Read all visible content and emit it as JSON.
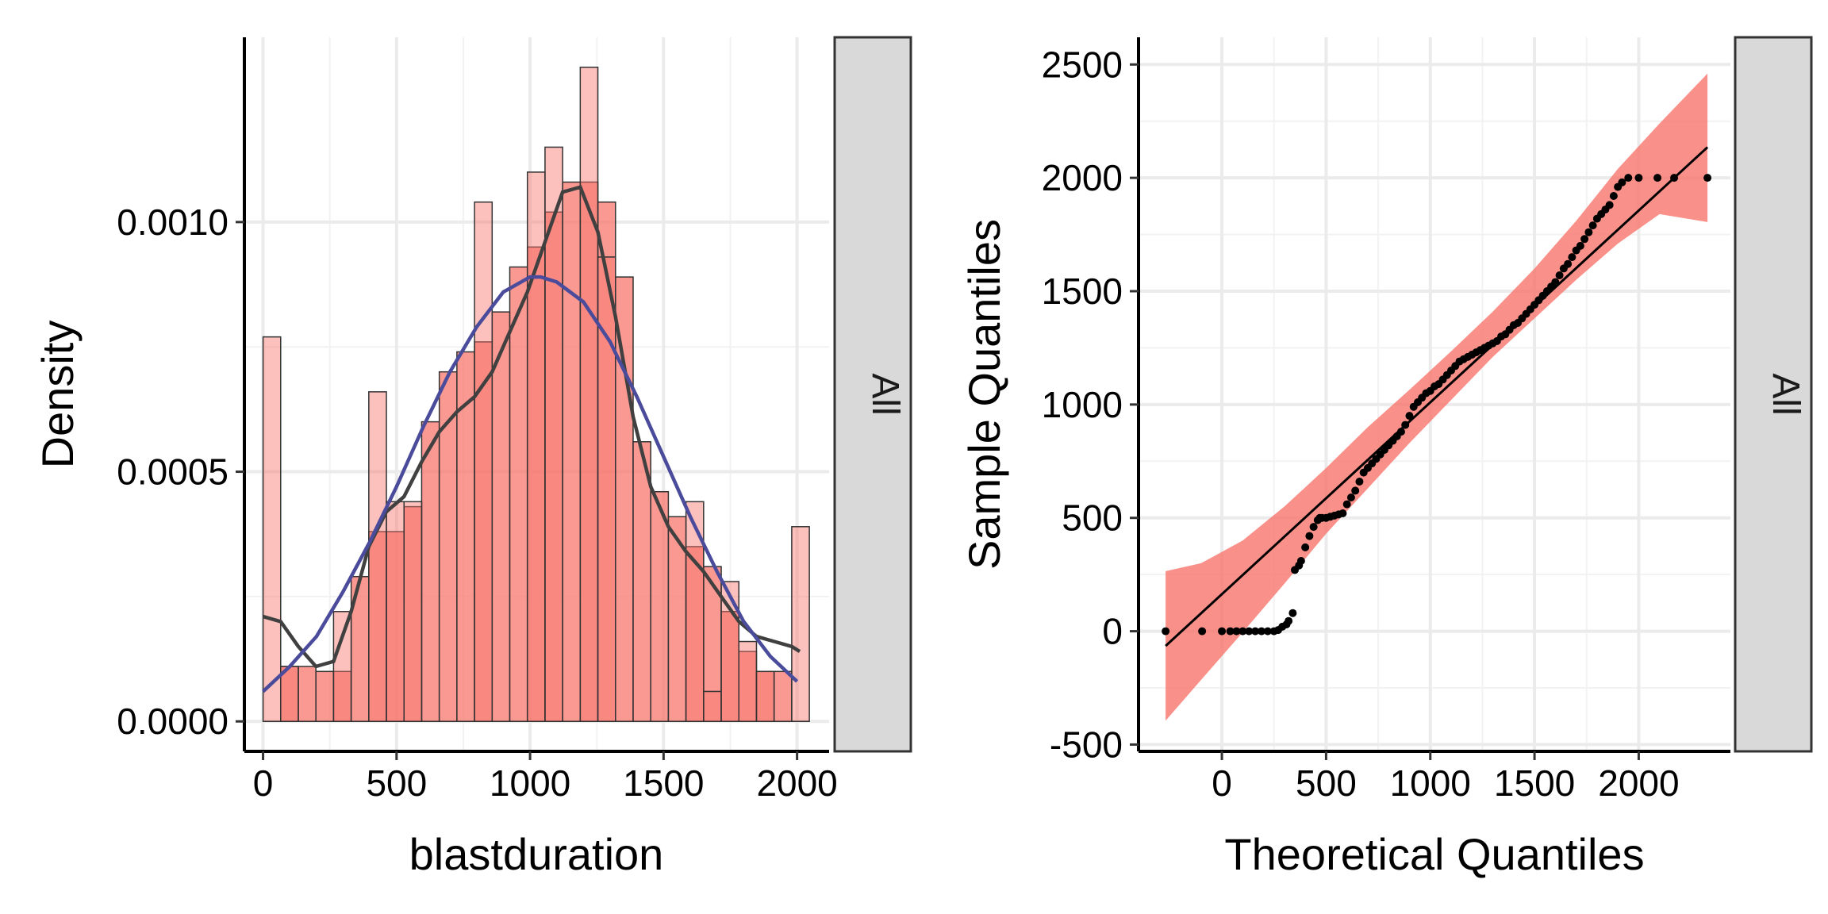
{
  "chart_data": [
    {
      "type": "bar",
      "subtype": "histogram-with-density",
      "xlabel": "blastduration",
      "ylabel": "Density",
      "facet_label": "All",
      "xlim": [
        -70,
        2120
      ],
      "ylim": [
        -6e-05,
        0.00137
      ],
      "x_ticks": [
        0,
        500,
        1000,
        1500,
        2000
      ],
      "y_ticks": [
        0.0,
        0.0005,
        0.001
      ],
      "y_tick_labels": [
        "0.0000",
        "0.0005",
        "0.0010"
      ],
      "grid": true,
      "colors": {
        "bar_fill": "#F8766D",
        "bar_stroke": "#333333",
        "kernel_density": "#404040",
        "normal_density": "#4B4B9B"
      },
      "histogram": {
        "bin_width": 66,
        "series_a_dark": {
          "bin_starts": [
            0,
            66,
            132,
            198,
            264,
            330,
            396,
            462,
            528,
            594,
            660,
            726,
            792,
            858,
            924,
            990,
            1056,
            1122,
            1188,
            1254,
            1320,
            1386,
            1452,
            1518,
            1584,
            1650,
            1716,
            1782,
            1848,
            1914,
            1980
          ],
          "values": [
            0.0,
            0.00011,
            0.00011,
            0.0001,
            0.0001,
            0.00029,
            0.00038,
            0.00038,
            0.00043,
            0.0006,
            0.0007,
            0.00074,
            0.00076,
            0.00082,
            0.00091,
            0.00095,
            0.00102,
            0.00108,
            0.00108,
            0.00104,
            0.00089,
            0.00056,
            0.00046,
            0.00041,
            0.00035,
            0.00031,
            0.00022,
            0.00014,
            0.0001,
            0.0001,
            0.0
          ]
        },
        "series_b_light": {
          "bin_starts": [
            0,
            66,
            132,
            198,
            264,
            330,
            396,
            462,
            528,
            594,
            660,
            726,
            792,
            858,
            924,
            990,
            1056,
            1122,
            1188,
            1254,
            1320,
            1386,
            1452,
            1518,
            1584,
            1650,
            1716,
            1782,
            1848,
            1914,
            1980
          ],
          "values": [
            0.00077,
            0.00011,
            0.0,
            0.0,
            0.00022,
            0.0,
            0.00066,
            0.00044,
            0.00044,
            0.0,
            0.0,
            0.0,
            0.00104,
            0.0,
            0.0,
            0.0011,
            0.00115,
            0.0,
            0.00131,
            0.00093,
            0.0,
            0.0,
            0.0,
            0.0,
            0.00044,
            6e-05,
            0.00028,
            0.00016,
            0.0001,
            0.0,
            0.00039
          ]
        }
      },
      "kernel_density": {
        "x": [
          0,
          66,
          132,
          198,
          264,
          330,
          396,
          462,
          528,
          594,
          660,
          726,
          792,
          858,
          924,
          990,
          1056,
          1122,
          1188,
          1254,
          1320,
          1386,
          1452,
          1518,
          1584,
          1650,
          1716,
          1782,
          1848,
          1914,
          1980,
          2010
        ],
        "y": [
          0.00021,
          0.0002,
          0.00015,
          0.00011,
          0.00012,
          0.00022,
          0.00035,
          0.00042,
          0.00045,
          0.00052,
          0.00058,
          0.00062,
          0.00065,
          0.0007,
          0.00078,
          0.00086,
          0.00096,
          0.00106,
          0.00107,
          0.00098,
          0.00081,
          0.00061,
          0.00047,
          0.00039,
          0.00034,
          0.0003,
          0.00025,
          0.0002,
          0.00017,
          0.00016,
          0.00015,
          0.00014
        ]
      },
      "normal_density": {
        "x": [
          0,
          100,
          200,
          300,
          400,
          500,
          600,
          700,
          800,
          900,
          1000,
          1040,
          1100,
          1200,
          1300,
          1400,
          1500,
          1600,
          1700,
          1800,
          1900,
          2000
        ],
        "y": [
          6e-05,
          0.00011,
          0.00017,
          0.00026,
          0.00036,
          0.00047,
          0.00059,
          0.0007,
          0.00079,
          0.00086,
          0.00089,
          0.00089,
          0.00088,
          0.00084,
          0.00076,
          0.00065,
          0.00053,
          0.00041,
          0.0003,
          0.0002,
          0.00013,
          8e-05
        ]
      }
    },
    {
      "type": "scatter",
      "subtype": "qq-plot",
      "xlabel": "Theoretical Quantiles",
      "ylabel": "Sample Quantiles",
      "facet_label": "All",
      "xlim": [
        -400,
        2440
      ],
      "ylim": [
        -530,
        2620
      ],
      "x_ticks": [
        0,
        500,
        1000,
        1500,
        2000
      ],
      "y_ticks": [
        -500,
        0,
        500,
        1000,
        1500,
        2000,
        2500
      ],
      "grid": true,
      "colors": {
        "band_fill": "#F8766D",
        "line": "#000000",
        "points": "#000000"
      },
      "reference_line": {
        "x": [
          -270,
          2330
        ],
        "y": [
          -65,
          2135
        ]
      },
      "confidence_band": {
        "x": [
          -270,
          -100,
          100,
          300,
          500,
          700,
          900,
          1100,
          1300,
          1500,
          1700,
          1900,
          2100,
          2330
        ],
        "upper": [
          265,
          300,
          400,
          550,
          720,
          900,
          1065,
          1235,
          1410,
          1600,
          1810,
          2040,
          2240,
          2460
        ],
        "lower": [
          -395,
          -215,
          -5,
          210,
          430,
          630,
          830,
          1020,
          1210,
          1380,
          1550,
          1710,
          1840,
          1805
        ]
      },
      "points": {
        "x": [
          -270,
          -95,
          0,
          40,
          70,
          100,
          130,
          160,
          190,
          220,
          250,
          270,
          290,
          310,
          320,
          340,
          350,
          370,
          380,
          400,
          420,
          440,
          460,
          470,
          480,
          500,
          520,
          540,
          560,
          580,
          600,
          620,
          640,
          660,
          680,
          700,
          720,
          740,
          760,
          780,
          800,
          820,
          840,
          860,
          880,
          900,
          920,
          940,
          960,
          980,
          1000,
          1020,
          1040,
          1060,
          1080,
          1100,
          1120,
          1140,
          1160,
          1180,
          1200,
          1220,
          1240,
          1260,
          1280,
          1300,
          1320,
          1340,
          1360,
          1380,
          1400,
          1420,
          1440,
          1460,
          1480,
          1500,
          1520,
          1540,
          1560,
          1580,
          1600,
          1620,
          1640,
          1660,
          1680,
          1700,
          1720,
          1740,
          1760,
          1780,
          1800,
          1820,
          1840,
          1860,
          1880,
          1900,
          1920,
          1950,
          2000,
          2090,
          2170,
          2330
        ],
        "y": [
          0,
          0,
          0,
          0,
          0,
          0,
          0,
          0,
          0,
          0,
          0,
          5,
          20,
          30,
          45,
          80,
          270,
          290,
          310,
          370,
          420,
          460,
          490,
          500,
          500,
          500,
          505,
          510,
          515,
          520,
          560,
          590,
          620,
          660,
          700,
          720,
          740,
          760,
          780,
          800,
          820,
          840,
          860,
          880,
          910,
          950,
          990,
          1010,
          1030,
          1050,
          1060,
          1080,
          1090,
          1110,
          1130,
          1150,
          1170,
          1190,
          1200,
          1210,
          1220,
          1230,
          1240,
          1250,
          1260,
          1270,
          1280,
          1300,
          1310,
          1330,
          1350,
          1360,
          1380,
          1400,
          1420,
          1440,
          1460,
          1480,
          1500,
          1520,
          1540,
          1570,
          1600,
          1620,
          1650,
          1680,
          1700,
          1730,
          1760,
          1790,
          1820,
          1840,
          1860,
          1880,
          1920,
          1960,
          1980,
          2000,
          2000,
          2000,
          2000,
          2000
        ]
      }
    }
  ]
}
